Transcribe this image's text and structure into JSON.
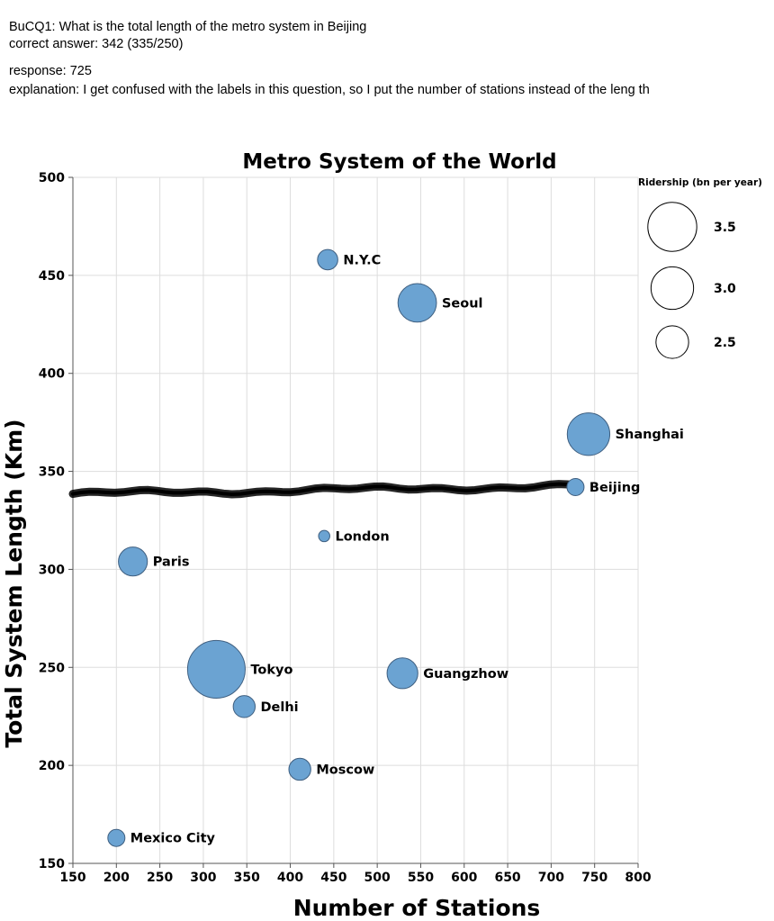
{
  "annotation": {
    "question": "BuCQ1: What is the total length of the metro system in Beijing",
    "correct_answer": "correct answer: 342 (335/250)",
    "response": "response: 725",
    "explanation": "explanation: I get confused with the labels in this question, so I put the number of stations instead of the leng th"
  },
  "chart_data": {
    "type": "scatter",
    "title": "Metro System of the World",
    "xlabel": "Number of Stations",
    "ylabel": "Total System Length (Km)",
    "xlim": [
      150,
      800
    ],
    "ylim": [
      150,
      500
    ],
    "xticks": [
      150,
      200,
      250,
      300,
      350,
      400,
      450,
      500,
      550,
      600,
      650,
      700,
      750,
      800
    ],
    "yticks": [
      150,
      200,
      250,
      300,
      350,
      400,
      450,
      500
    ],
    "grid": true,
    "size_legend": {
      "title": "Ridership (bn per year)",
      "placement": "top-right",
      "entries": [
        3.5,
        3.0,
        2.5
      ]
    },
    "points": [
      {
        "label": "N.Y.C",
        "x": 443,
        "y": 458,
        "ridership": 1.8
      },
      {
        "label": "Seoul",
        "x": 546,
        "y": 436,
        "ridership": 2.8
      },
      {
        "label": "Shanghai",
        "x": 743,
        "y": 369,
        "ridership": 3.0
      },
      {
        "label": "Beijing",
        "x": 728,
        "y": 342,
        "ridership": 1.6
      },
      {
        "label": "London",
        "x": 439,
        "y": 317,
        "ridership": 1.2
      },
      {
        "label": "Paris",
        "x": 219,
        "y": 304,
        "ridership": 2.3
      },
      {
        "label": "Tokyo",
        "x": 315,
        "y": 249,
        "ridership": 3.7
      },
      {
        "label": "Guangzhow",
        "x": 529,
        "y": 247,
        "ridership": 2.4
      },
      {
        "label": "Delhi",
        "x": 347,
        "y": 230,
        "ridership": 1.9
      },
      {
        "label": "Moscow",
        "x": 411,
        "y": 198,
        "ridership": 1.9
      },
      {
        "label": "Mexico City",
        "x": 200,
        "y": 163,
        "ridership": 1.6
      }
    ],
    "annotation_line": {
      "x_start": 150,
      "x_end": 728,
      "y": 341
    }
  },
  "colors": {
    "point_fill": "#6ba3d2",
    "point_stroke": "#3f5f80",
    "grid": "#dddddd",
    "scribble": "#000000"
  }
}
